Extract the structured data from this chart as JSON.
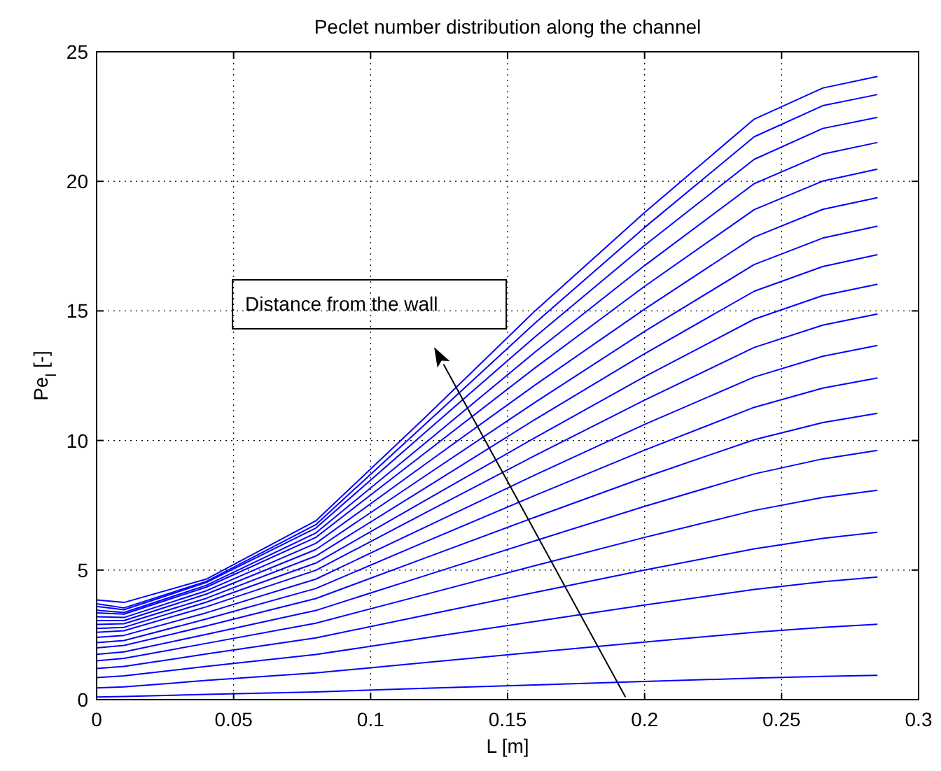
{
  "chart_data": {
    "type": "line",
    "title": "Peclet number distribution along the channel",
    "xlabel": "L [m]",
    "ylabel": "Pe$_{l}$ [-]",
    "x": [
      0,
      0.01,
      0.04,
      0.08,
      0.12,
      0.16,
      0.2,
      0.24,
      0.265,
      0.285
    ],
    "xlim": [
      0,
      0.3
    ],
    "xticks": [
      0,
      0.05,
      0.1,
      0.15,
      0.2,
      0.25,
      0.3
    ],
    "ylim": [
      0,
      25
    ],
    "yticks": [
      0,
      5,
      10,
      15,
      20,
      25
    ],
    "grid": true,
    "line_style": "solid",
    "marker": "none",
    "annotations": [
      "Distance from the wall"
    ],
    "series": [
      {
        "color": "#0000ff",
        "values": [
          0.1,
          0.12,
          0.2,
          0.3,
          0.44,
          0.57,
          0.7,
          0.83,
          0.9,
          0.94
        ]
      },
      {
        "color": "#0000ff",
        "values": [
          0.45,
          0.49,
          0.74,
          1.03,
          1.43,
          1.83,
          2.22,
          2.6,
          2.79,
          2.91
        ]
      },
      {
        "color": "#0000ff",
        "values": [
          0.85,
          0.92,
          1.28,
          1.74,
          2.38,
          3.02,
          3.65,
          4.25,
          4.55,
          4.73
        ]
      },
      {
        "color": "#0000ff",
        "values": [
          1.2,
          1.28,
          1.76,
          2.38,
          3.26,
          4.14,
          5.0,
          5.82,
          6.22,
          6.46
        ]
      },
      {
        "color": "#0000ff",
        "values": [
          1.5,
          1.59,
          2.17,
          2.95,
          4.06,
          5.17,
          6.26,
          7.3,
          7.8,
          8.08
        ]
      },
      {
        "color": "#0000ff",
        "values": [
          1.75,
          1.84,
          2.52,
          3.44,
          4.79,
          6.13,
          7.46,
          8.71,
          9.29,
          9.62
        ]
      },
      {
        "color": "#0000ff",
        "values": [
          2.0,
          2.09,
          2.84,
          3.9,
          5.47,
          7.04,
          8.58,
          10.03,
          10.69,
          11.05
        ]
      },
      {
        "color": "#0000ff",
        "values": [
          2.2,
          2.28,
          3.11,
          4.29,
          6.09,
          7.88,
          9.63,
          11.28,
          12.02,
          12.41
        ]
      },
      {
        "color": "#0000ff",
        "values": [
          2.4,
          2.48,
          3.35,
          4.65,
          6.66,
          8.67,
          10.62,
          12.45,
          13.25,
          13.67
        ]
      },
      {
        "color": "#0000ff",
        "values": [
          2.6,
          2.66,
          3.58,
          4.99,
          7.21,
          9.42,
          11.56,
          13.59,
          14.45,
          14.88
        ]
      },
      {
        "color": "#0000ff",
        "values": [
          2.75,
          2.79,
          3.76,
          5.27,
          7.69,
          10.11,
          12.46,
          14.68,
          15.59,
          16.03
        ]
      },
      {
        "color": "#0000ff",
        "values": [
          2.9,
          2.93,
          3.91,
          5.54,
          8.17,
          10.81,
          13.35,
          15.76,
          16.71,
          17.17
        ]
      },
      {
        "color": "#0000ff",
        "values": [
          3.05,
          3.05,
          4.07,
          5.79,
          8.64,
          11.47,
          14.21,
          16.79,
          17.81,
          18.27
        ]
      },
      {
        "color": "#0000ff",
        "values": [
          3.2,
          3.17,
          4.2,
          6.03,
          9.09,
          12.14,
          15.07,
          17.85,
          18.92,
          19.37
        ]
      },
      {
        "color": "#0000ff",
        "values": [
          3.35,
          3.3,
          4.34,
          6.26,
          9.53,
          12.8,
          15.95,
          18.91,
          20.01,
          20.47
        ]
      },
      {
        "color": "#0000ff",
        "values": [
          3.45,
          3.36,
          4.41,
          6.43,
          9.91,
          13.41,
          16.75,
          19.91,
          21.05,
          21.5
        ]
      },
      {
        "color": "#0000ff",
        "values": [
          3.6,
          3.47,
          4.52,
          6.62,
          10.32,
          14.0,
          17.53,
          20.85,
          22.04,
          22.47
        ]
      },
      {
        "color": "#0000ff",
        "values": [
          3.7,
          3.54,
          4.56,
          6.75,
          10.64,
          14.53,
          18.22,
          21.72,
          22.92,
          23.35
        ]
      },
      {
        "color": "#0000ff",
        "values": [
          3.85,
          3.75,
          4.65,
          6.9,
          10.9,
          15.0,
          18.8,
          22.4,
          23.6,
          24.05
        ]
      }
    ]
  }
}
